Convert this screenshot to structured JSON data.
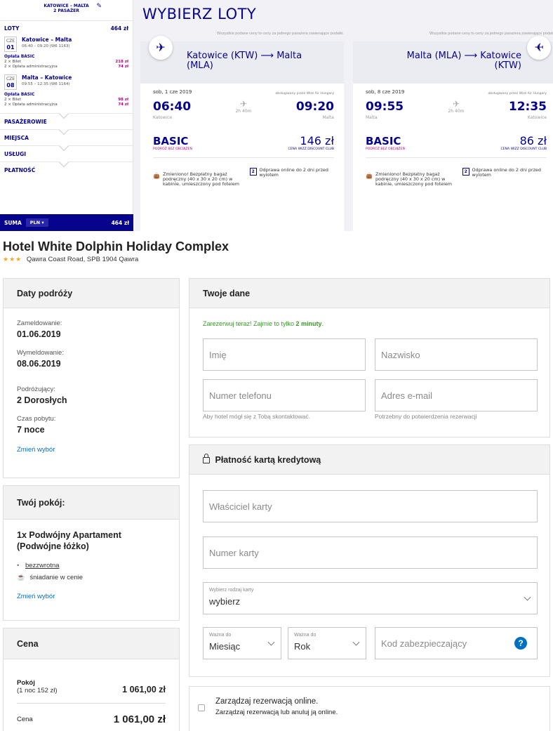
{
  "wizz": {
    "sidebar": {
      "route": "KATOWICE – MALTA",
      "passengers": "2 PASAŻER",
      "loty_label": "LOTY",
      "loty_total": "464 zł",
      "flight1": {
        "day": "CZE",
        "date": "01",
        "route": "Katowice – Malta",
        "detail": "06:40 – 09:20 (W6 1163)"
      },
      "fare1": {
        "title": "Opłata BASIC",
        "line1": "2 × Bilet",
        "amount1": "218 zł",
        "line2": "2 × Opłata administracyjna",
        "amount2": "74 zł"
      },
      "flight2": {
        "day": "CZE",
        "date": "08",
        "route": "Malta – Katowice",
        "detail": "09:55 – 12:35 (W6 1164)"
      },
      "fare2": {
        "title": "Opłata BASIC",
        "line1": "2 × Bilet",
        "amount1": "98 zł",
        "line2": "2 × Opłata administracyjna",
        "amount2": "74 zł"
      },
      "sections": [
        "PASAŻEROWIE",
        "MIEJSCA",
        "USŁUGI",
        "PŁATNOŚĆ"
      ],
      "suma_label": "SUMA",
      "currency": "PLN",
      "suma_total": "464 zł"
    },
    "title": "WYBIERZ LOTY",
    "price_note": "Wszystkie podane ceny to ceny za jednego pasażera zawierające podatki.",
    "outbound": {
      "route": "Katowice (KTW) ⟶ Malta (MLA)",
      "date": "sob, 1 cze 2019",
      "operator": "obsługiwany przez Wizz Air Hungary",
      "dep": "06:40",
      "arr": "09:20",
      "duration": "2h 40m",
      "from": "Katowice",
      "to": "Malta",
      "fare": "BASIC",
      "fare_sub": "PODRÓŻ BEZ OBCIĄŻEŃ",
      "price": "146 zł",
      "price_sub": "CENA WIZZ DISCOUNT CLUB",
      "perk1": "Zmieniono! Bezpłatny bagaż podręczny (40 x 30 x 20 cm) w kabinie, umieszczony pod fotelem",
      "perk2": "Odprawa online do 2 dni przed wylotem"
    },
    "inbound": {
      "route": "Malta (MLA) ⟶ Katowice (KTW)",
      "date": "sob, 8 cze 2019",
      "operator": "obsługiwany przez Wizz Air Hungary",
      "dep": "09:55",
      "arr": "12:35",
      "duration": "2h 40m",
      "from": "Malta",
      "to": "Katowice",
      "fare": "BASIC",
      "fare_sub": "PODRÓŻ BEZ OBCIĄŻEŃ",
      "price": "86 zł",
      "price_sub": "CENA WIZZ DISCOUNT CLUB",
      "perk1": "Zmieniono! Bezpłatny bagaż podręczny (40 x 30 x 20 cm) w kabinie, umieszczony pod fotelem",
      "perk2": "Odprawa online do 2 dni przed wylotem"
    },
    "colors": {
      "brand": "#06038d",
      "accent": "#c1007a"
    }
  },
  "hotel": {
    "name": "Hotel White Dolphin Holiday Complex",
    "stars": "★★★",
    "address": "Qawra Coast Road, SPB 1904 Qawra",
    "dates_panel": {
      "title": "Daty podróży",
      "checkin_label": "Zameldowanie:",
      "checkin": "01.06.2019",
      "checkout_label": "Wymeldowanie:",
      "checkout": "08.06.2019",
      "travelers_label": "Podróżujący:",
      "travelers": "2 Dorosłych",
      "stay_label": "Czas pobytu:",
      "stay": "7 noce",
      "change": "Zmień wybór"
    },
    "room_panel": {
      "title": "Twój pokój:",
      "room": "1x Podwójny Apartament (Podwójne łóżko)",
      "refund": "bezzwrotna",
      "breakfast": "śniadanie w cenie",
      "change": "Zmień wybór"
    },
    "price_panel": {
      "title": "Cena",
      "room_label": "Pokój",
      "room_sub": "(1 noc 152 zł)",
      "room_price": "1 061,00 zł",
      "total_label": "Cena",
      "total_price": "1 061,00 zł"
    },
    "details": {
      "title": "Twoje dane",
      "promo_text": "Zarezerwuj teraz! Zajmie to tylko ",
      "promo_bold": "2 minuty",
      "promo_end": ".",
      "first_name": "Imię",
      "last_name": "Nazwisko",
      "phone": "Numer telefonu",
      "email": "Adres e-mail",
      "phone_hint": "Aby hotel mógł się z Tobą skontaktować.",
      "email_hint": "Potrzebny do potwierdzenia rezerwacji"
    },
    "payment": {
      "title": "Płatność kartą kredytową",
      "holder": "Właściciel karty",
      "number": "Numer karty",
      "type_label": "Wybierz rodzaj karty",
      "type_value": "wybierz",
      "month_label": "Ważna do",
      "month_value": "Miesiąc",
      "year_label": "Ważna do",
      "year_value": "Rok",
      "cvv": "Kod zabezpieczający",
      "help": "?"
    },
    "manage": {
      "title": "Zarządzaj rezerwacją online.",
      "sub": "Zarządzaj rezerwacją lub anuluj ją online."
    },
    "colors": {
      "link": "#0071c2",
      "promo": "#3a9a2a",
      "help": "#0071c2"
    }
  }
}
